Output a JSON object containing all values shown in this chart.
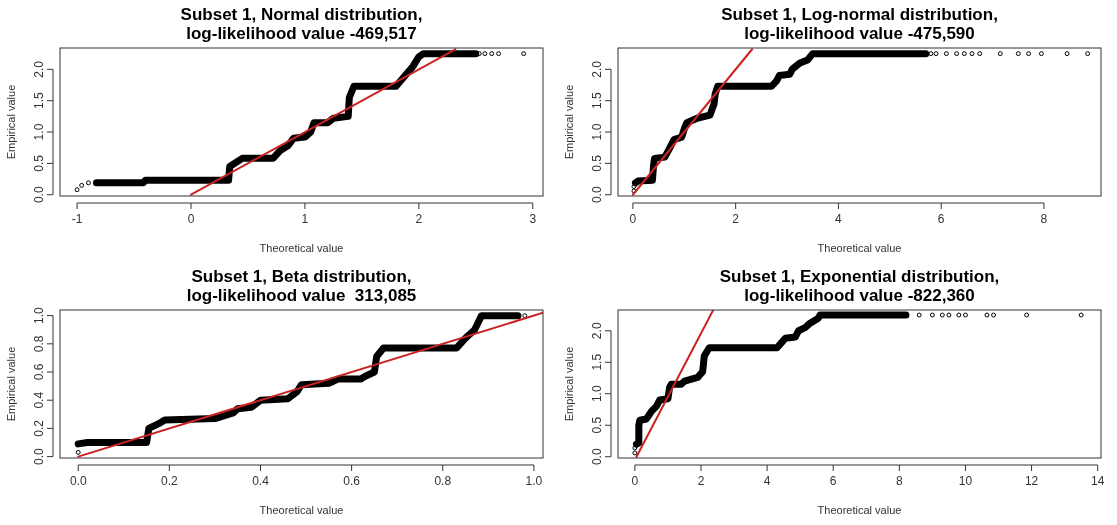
{
  "chart_data": [
    {
      "type": "scatter",
      "title": "Subset 1, Normal distribution,\nlog-likelihood value -469,517",
      "xlabel": "Theoretical value",
      "ylabel": "Empirical value",
      "xlim": [
        -1.15,
        3.09
      ],
      "ylim": [
        -0.02,
        2.34
      ],
      "xticks": [
        -1,
        0,
        1,
        2,
        3
      ],
      "yticks": [
        {
          "value": 0,
          "label": "0.0"
        },
        {
          "value": 0.5,
          "label": "0.5"
        },
        {
          "value": 1,
          "label": "1.0"
        },
        {
          "value": 1.5,
          "label": "1.5"
        },
        {
          "value": 2,
          "label": "2.0"
        }
      ],
      "grid": false,
      "series": [
        {
          "type": "line",
          "color": "#000000",
          "x": [
            -0.83,
            -0.42,
            -0.4,
            0.33,
            0.34,
            0.45,
            0.72,
            0.78,
            0.85,
            0.9,
            1.0,
            1.05,
            1.08,
            1.2,
            1.25,
            1.38,
            1.39,
            1.43,
            1.8,
            1.88,
            1.95,
            2.0,
            2.04,
            2.5
          ],
          "values": [
            0.19,
            0.19,
            0.23,
            0.23,
            0.45,
            0.58,
            0.58,
            0.7,
            0.78,
            0.9,
            0.92,
            1.0,
            1.15,
            1.15,
            1.22,
            1.25,
            1.55,
            1.73,
            1.73,
            1.9,
            2.05,
            2.2,
            2.25,
            2.25
          ]
        },
        {
          "color": "#000000",
          "marker": "circle",
          "x": [
            -1.0,
            -0.96,
            -0.9,
            2.53,
            2.58,
            2.64,
            2.7,
            2.92
          ],
          "values": [
            0.08,
            0.15,
            0.19,
            2.25,
            2.25,
            2.25,
            2.25,
            2.25
          ]
        },
        {
          "type": "line",
          "color": "#cc2222",
          "x": [
            0,
            2.32
          ],
          "values": [
            0,
            2.32
          ]
        }
      ]
    },
    {
      "type": "scatter",
      "title": "Subset 1, Log-normal distribution,\nlog-likelihood value -475,590",
      "xlabel": "Theoretical value",
      "ylabel": "Empirical value",
      "xlim": [
        -0.29,
        9.11
      ],
      "ylim": [
        -0.02,
        2.34
      ],
      "xticks": [
        0,
        2,
        4,
        6,
        8
      ],
      "yticks": [
        {
          "value": 0,
          "label": "0.0"
        },
        {
          "value": 0.5,
          "label": "0.5"
        },
        {
          "value": 1,
          "label": "1.0"
        },
        {
          "value": 1.5,
          "label": "1.5"
        },
        {
          "value": 2,
          "label": "2.0"
        }
      ],
      "grid": false,
      "series": [
        {
          "type": "line",
          "color": "#000000",
          "x": [
            0.05,
            0.1,
            0.38,
            0.4,
            0.42,
            0.62,
            0.7,
            0.8,
            0.95,
            1.0,
            1.05,
            1.25,
            1.5,
            1.58,
            1.6,
            1.65,
            2.7,
            2.8,
            2.85,
            3.05,
            3.1,
            3.25,
            3.4,
            3.5,
            5.7
          ],
          "values": [
            0.19,
            0.22,
            0.23,
            0.45,
            0.58,
            0.6,
            0.72,
            0.88,
            0.92,
            1.05,
            1.15,
            1.22,
            1.27,
            1.45,
            1.6,
            1.73,
            1.73,
            1.82,
            1.9,
            1.92,
            2.0,
            2.1,
            2.15,
            2.25,
            2.25
          ]
        },
        {
          "color": "#000000",
          "marker": "circle",
          "x": [
            0.02,
            0.02,
            5.8,
            5.9,
            6.1,
            6.3,
            6.45,
            6.6,
            6.75,
            7.15,
            7.5,
            7.7,
            7.95,
            8.45,
            8.85
          ],
          "values": [
            0.06,
            0.13,
            2.25,
            2.25,
            2.25,
            2.25,
            2.25,
            2.25,
            2.25,
            2.25,
            2.25,
            2.25,
            2.25,
            2.25,
            2.25
          ]
        },
        {
          "type": "line",
          "color": "#cc2222",
          "x": [
            0,
            2.32
          ],
          "values": [
            0,
            2.32
          ]
        }
      ]
    },
    {
      "type": "scatter",
      "title": "Subset 1, Beta distribution,\nlog-likelihood value  313,085",
      "xlabel": "Theoretical value",
      "ylabel": "Empirical value",
      "xlim": [
        -0.04,
        1.02
      ],
      "ylim": [
        -0.01,
        1.04
      ],
      "xticks": [
        {
          "value": 0,
          "label": "0.0"
        },
        {
          "value": 0.2,
          "label": "0.2"
        },
        {
          "value": 0.4,
          "label": "0.4"
        },
        {
          "value": 0.6,
          "label": "0.6"
        },
        {
          "value": 0.8,
          "label": "0.8"
        },
        {
          "value": 1,
          "label": "1.0"
        }
      ],
      "yticks": [
        {
          "value": 0,
          "label": "0.0"
        },
        {
          "value": 0.2,
          "label": "0.2"
        },
        {
          "value": 0.4,
          "label": "0.4"
        },
        {
          "value": 0.6,
          "label": "0.6"
        },
        {
          "value": 0.8,
          "label": "0.8"
        },
        {
          "value": 1,
          "label": "1.0"
        }
      ],
      "grid": false,
      "series": [
        {
          "type": "line",
          "color": "#000000",
          "x": [
            0.0,
            0.02,
            0.15,
            0.155,
            0.18,
            0.19,
            0.3,
            0.34,
            0.35,
            0.38,
            0.4,
            0.46,
            0.48,
            0.49,
            0.55,
            0.57,
            0.62,
            0.63,
            0.65,
            0.655,
            0.67,
            0.83,
            0.85,
            0.87,
            0.885,
            0.965
          ],
          "values": [
            0.09,
            0.1,
            0.1,
            0.2,
            0.24,
            0.26,
            0.27,
            0.31,
            0.34,
            0.35,
            0.4,
            0.41,
            0.46,
            0.51,
            0.52,
            0.55,
            0.55,
            0.57,
            0.6,
            0.71,
            0.77,
            0.77,
            0.84,
            0.9,
            1.0,
            1.0
          ]
        },
        {
          "color": "#000000",
          "marker": "circle",
          "x": [
            0.0,
            0.98
          ],
          "values": [
            0.03,
            1.0
          ]
        },
        {
          "type": "line",
          "color": "#cc2222",
          "x": [
            0,
            1.02
          ],
          "values": [
            0,
            1.02
          ]
        }
      ]
    },
    {
      "type": "scatter",
      "title": "Subset 1, Exponential distribution,\nlog-likelihood value -822,360",
      "xlabel": "Theoretical value",
      "ylabel": "Empirical value",
      "xlim": [
        -0.51,
        14.1
      ],
      "ylim": [
        -0.02,
        2.33
      ],
      "xticks": [
        0,
        2,
        4,
        6,
        8,
        10,
        12,
        14
      ],
      "yticks": [
        {
          "value": 0,
          "label": "0.0"
        },
        {
          "value": 0.5,
          "label": "0.5"
        },
        {
          "value": 1,
          "label": "1.0"
        },
        {
          "value": 1.5,
          "label": "1.5"
        },
        {
          "value": 2,
          "label": "2.0"
        }
      ],
      "grid": false,
      "series": [
        {
          "type": "line",
          "color": "#000000",
          "x": [
            0.05,
            0.12,
            0.12,
            0.15,
            0.35,
            0.5,
            0.65,
            0.75,
            1.0,
            1.05,
            1.1,
            1.4,
            1.5,
            1.9,
            2.05,
            2.1,
            2.25,
            4.3,
            4.45,
            4.55,
            4.85,
            4.95,
            5.15,
            5.3,
            5.55,
            5.6,
            8.2
          ],
          "values": [
            0.2,
            0.22,
            0.5,
            0.58,
            0.6,
            0.72,
            0.8,
            0.9,
            0.92,
            1.1,
            1.15,
            1.15,
            1.2,
            1.26,
            1.35,
            1.6,
            1.73,
            1.73,
            1.82,
            1.88,
            1.9,
            2.0,
            2.05,
            2.12,
            2.2,
            2.25,
            2.25
          ]
        },
        {
          "color": "#000000",
          "marker": "circle",
          "x": [
            0,
            0,
            8.6,
            9.0,
            9.3,
            9.5,
            9.8,
            10.0,
            10.65,
            10.85,
            11.85,
            13.5
          ],
          "values": [
            0.06,
            0.14,
            2.25,
            2.25,
            2.25,
            2.25,
            2.25,
            2.25,
            2.25,
            2.25,
            2.25,
            2.25
          ]
        },
        {
          "type": "line",
          "color": "#cc2222",
          "x": [
            0.05,
            2.37
          ],
          "values": [
            0,
            2.33
          ]
        }
      ]
    }
  ]
}
